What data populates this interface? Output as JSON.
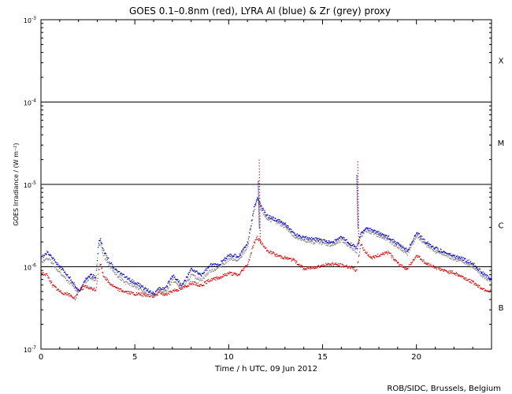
{
  "chart_data": {
    "type": "scatter",
    "title": "GOES 0.1–0.8nm (red), LYRA Al (blue) & Zr (grey) proxy",
    "xlabel": "Time / h UTC, 09 Jun 2012",
    "ylabel": "GOES Irradiance / (W m⁻²)",
    "xlim": [
      0,
      24
    ],
    "ylim": [
      1e-07,
      0.001
    ],
    "yscale": "log",
    "x_ticks": [
      {
        "v": 0,
        "label": "0"
      },
      {
        "v": 5,
        "label": "5"
      },
      {
        "v": 10,
        "label": "10"
      },
      {
        "v": 15,
        "label": "15"
      },
      {
        "v": 20,
        "label": "20"
      }
    ],
    "y_ticks": [
      {
        "v": 1e-07,
        "base": "10",
        "exp": "-7"
      },
      {
        "v": 1e-06,
        "base": "10",
        "exp": "-6"
      },
      {
        "v": 1e-05,
        "base": "10",
        "exp": "-5"
      },
      {
        "v": 0.0001,
        "base": "10",
        "exp": "-4"
      },
      {
        "v": 0.001,
        "base": "10",
        "exp": "-3"
      }
    ],
    "flare_class_lines": [
      1e-06,
      1e-05,
      0.0001
    ],
    "flare_classes": [
      {
        "label": "X",
        "v": 0.00032
      },
      {
        "label": "M",
        "v": 3.2e-05
      },
      {
        "label": "C",
        "v": 3.2e-06
      },
      {
        "label": "B",
        "v": 3.2e-07
      }
    ],
    "colors": {
      "goes": "#e00000",
      "al": "#0000c8",
      "zr": "#888888",
      "axis": "#000000"
    },
    "series": [
      {
        "key": "goes",
        "x": [
          0,
          0.3,
          0.6,
          1.0,
          1.4,
          1.8,
          2.0,
          2.3,
          2.6,
          2.9,
          3.05,
          3.15,
          3.3,
          3.6,
          4.0,
          4.5,
          5.0,
          5.5,
          6.0,
          6.3,
          6.6,
          7.0,
          7.5,
          8.0,
          8.5,
          9.0,
          9.5,
          10.0,
          10.5,
          11.0,
          11.3,
          11.5,
          11.7,
          12.0,
          12.5,
          13.0,
          13.5,
          14.0,
          14.5,
          15.0,
          15.5,
          16.0,
          16.5,
          16.8,
          17.0,
          17.3,
          17.6,
          18.0,
          18.5,
          19.0,
          19.5,
          20.0,
          20.5,
          21.0,
          21.5,
          22.0,
          22.5,
          23.0,
          23.5,
          24.0
        ],
        "y": [
          8.5e-07,
          8e-07,
          6e-07,
          5e-07,
          4.7e-07,
          4.2e-07,
          5.2e-07,
          5.8e-07,
          5.5e-07,
          5.3e-07,
          9e-07,
          1.1e-06,
          8e-07,
          6.5e-07,
          5.5e-07,
          5e-07,
          4.7e-07,
          4.6e-07,
          4.4e-07,
          5e-07,
          4.6e-07,
          5.2e-07,
          5.5e-07,
          6.5e-07,
          6e-07,
          7e-07,
          7.5e-07,
          8.5e-07,
          8e-07,
          1.1e-06,
          1.9e-06,
          2.3e-06,
          2e-06,
          1.6e-06,
          1.4e-06,
          1.3e-06,
          1.2e-06,
          9.5e-07,
          1e-06,
          1.05e-06,
          1.1e-06,
          1.05e-06,
          1e-06,
          9e-07,
          1.9e-06,
          1.5e-06,
          1.3e-06,
          1.4e-06,
          1.5e-06,
          1.1e-06,
          9.5e-07,
          1.4e-06,
          1.1e-06,
          1e-06,
          9e-07,
          8.5e-07,
          7.5e-07,
          6.5e-07,
          5.5e-07,
          5e-07
        ]
      },
      {
        "key": "al",
        "x": [
          0,
          0.3,
          0.6,
          1.0,
          1.4,
          1.8,
          2.0,
          2.3,
          2.6,
          2.9,
          3.05,
          3.15,
          3.3,
          3.6,
          4.0,
          4.5,
          5.0,
          5.5,
          6.0,
          6.3,
          6.6,
          7.0,
          7.5,
          8.0,
          8.5,
          9.0,
          9.5,
          10.0,
          10.5,
          11.0,
          11.3,
          11.5,
          11.7,
          12.0,
          12.5,
          13.0,
          13.5,
          14.0,
          14.5,
          15.0,
          15.5,
          16.0,
          16.5,
          16.8,
          17.0,
          17.3,
          17.6,
          18.0,
          18.5,
          19.0,
          19.5,
          20.0,
          20.5,
          21.0,
          21.5,
          22.0,
          22.5,
          23.0,
          23.5,
          24.0
        ],
        "y": [
          1.3e-06,
          1.5e-06,
          1.3e-06,
          1e-06,
          8e-07,
          6e-07,
          5e-07,
          7e-07,
          8e-07,
          7.5e-07,
          2e-06,
          2.2e-06,
          1.6e-06,
          1.2e-06,
          9e-07,
          7.5e-07,
          6.5e-07,
          5.5e-07,
          4.8e-07,
          5.5e-07,
          5.5e-07,
          8e-07,
          6e-07,
          9.5e-07,
          8e-07,
          1.05e-06,
          1.1e-06,
          1.4e-06,
          1.35e-06,
          2e-06,
          5e-06,
          7e-06,
          5.5e-06,
          4.2e-06,
          3.8e-06,
          3.3e-06,
          2.5e-06,
          2.3e-06,
          2.2e-06,
          2.1e-06,
          2e-06,
          2.3e-06,
          1.9e-06,
          1.7e-06,
          2.5e-06,
          3e-06,
          2.8e-06,
          2.6e-06,
          2.3e-06,
          1.9e-06,
          1.6e-06,
          2.6e-06,
          2e-06,
          1.7e-06,
          1.5e-06,
          1.35e-06,
          1.25e-06,
          1.1e-06,
          8.5e-07,
          7e-07
        ]
      },
      {
        "key": "zr",
        "x": [
          0,
          0.3,
          0.6,
          1.0,
          1.4,
          1.8,
          2.0,
          2.3,
          2.6,
          2.9,
          3.05,
          3.15,
          3.3,
          3.6,
          4.0,
          4.5,
          5.0,
          5.5,
          6.0,
          6.3,
          6.6,
          7.0,
          7.5,
          8.0,
          8.5,
          9.0,
          9.5,
          10.0,
          10.5,
          11.0,
          11.3,
          11.5,
          11.7,
          12.0,
          12.5,
          13.0,
          13.5,
          14.0,
          14.5,
          15.0,
          15.5,
          16.0,
          16.5,
          16.8,
          17.0,
          17.3,
          17.6,
          18.0,
          18.5,
          19.0,
          19.5,
          20.0,
          20.5,
          21.0,
          21.5,
          22.0,
          22.5,
          23.0,
          23.5,
          24.0
        ],
        "y": [
          1.1e-06,
          1.3e-06,
          1.1e-06,
          8.5e-07,
          6.8e-07,
          5.5e-07,
          5e-07,
          6.5e-07,
          7.5e-07,
          7e-07,
          1.8e-06,
          2e-06,
          1.4e-06,
          1.05e-06,
          8e-07,
          6.5e-07,
          5.8e-07,
          5e-07,
          4.5e-07,
          5e-07,
          5e-07,
          7e-07,
          5.5e-07,
          8e-07,
          7e-07,
          9e-07,
          1e-06,
          1.25e-06,
          1.2e-06,
          1.8e-06,
          4.5e-06,
          6.5e-06,
          5e-06,
          3.9e-06,
          3.5e-06,
          3.1e-06,
          2.3e-06,
          2.1e-06,
          2e-06,
          1.95e-06,
          1.85e-06,
          2.1e-06,
          1.75e-06,
          1.55e-06,
          2.3e-06,
          2.8e-06,
          2.6e-06,
          2.4e-06,
          2.1e-06,
          1.75e-06,
          1.45e-06,
          2.4e-06,
          1.85e-06,
          1.55e-06,
          1.4e-06,
          1.25e-06,
          1.15e-06,
          1e-06,
          7.8e-07,
          6.5e-07
        ]
      }
    ],
    "peaks": [
      {
        "key": "goes",
        "x": 11.6,
        "y": 2e-05
      },
      {
        "key": "goes",
        "x": 16.85,
        "y": 1.9e-05
      },
      {
        "key": "al",
        "x": 11.55,
        "y": 1.1e-05
      },
      {
        "key": "al",
        "x": 16.8,
        "y": 1.3e-05
      }
    ]
  },
  "credit": "ROB/SIDC, Brussels, Belgium"
}
